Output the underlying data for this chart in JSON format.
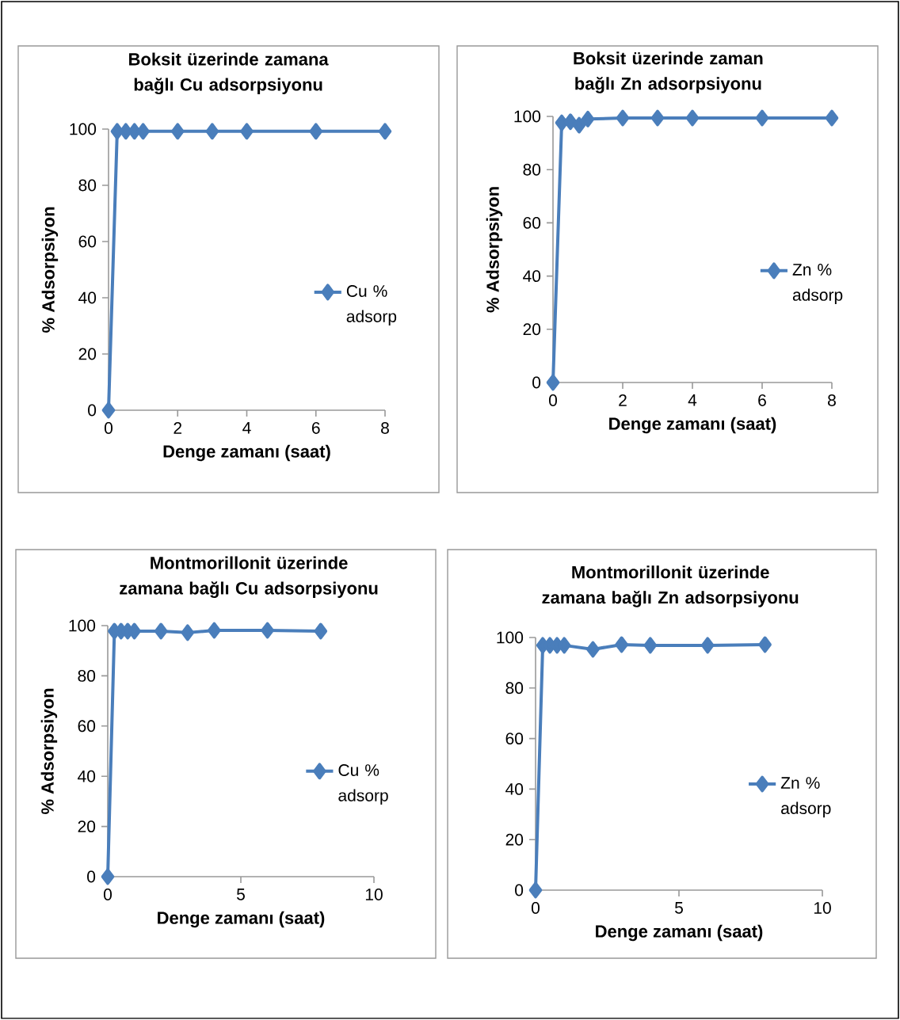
{
  "chart_data": [
    {
      "type": "line",
      "title": "Boksit üzerinde zamana bağlı Cu adsorpsiyonu",
      "xlabel": "Denge zamanı (saat)",
      "ylabel": "% Adsorpsiyon",
      "x": [
        0,
        0.25,
        0.5,
        0.75,
        1,
        2,
        3,
        4,
        6,
        8
      ],
      "xlim": [
        0,
        8
      ],
      "xticks": [
        0,
        2,
        4,
        6,
        8
      ],
      "ylim": [
        0,
        100
      ],
      "yticks": [
        0,
        20,
        40,
        60,
        80,
        100
      ],
      "marker": "diamond",
      "legend": "right",
      "series": [
        {
          "name": "Cu % adsorp",
          "color": "#4a7ebb",
          "values": [
            0,
            99.2,
            99.2,
            99.2,
            99.2,
            99.2,
            99.2,
            99.2,
            99.2,
            99.2
          ]
        }
      ]
    },
    {
      "type": "line",
      "title": "Boksit üzerinde zaman bağlı Zn adsorpsiyonu",
      "xlabel": "Denge zamanı (saat)",
      "ylabel": "% Adsorpsiyon",
      "x": [
        0,
        0.25,
        0.5,
        0.75,
        1,
        2,
        3,
        4,
        6,
        8
      ],
      "xlim": [
        0,
        8
      ],
      "xticks": [
        0,
        2,
        4,
        6,
        8
      ],
      "ylim": [
        0,
        100
      ],
      "yticks": [
        0,
        20,
        40,
        60,
        80,
        100
      ],
      "marker": "diamond",
      "legend": "right",
      "series": [
        {
          "name": "Zn % adsorp",
          "color": "#4a7ebb",
          "values": [
            0,
            97.6,
            98,
            96.7,
            99,
            99.4,
            99.4,
            99.4,
            99.4,
            99.4
          ]
        }
      ]
    },
    {
      "type": "line",
      "title": "Montmorillonit üzerinde zamana bağlı Cu adsorpsiyonu",
      "xlabel": "Denge zamanı (saat)",
      "ylabel": "% Adsorpsiyon",
      "x": [
        0,
        0.25,
        0.5,
        0.75,
        1,
        2,
        3,
        4,
        6,
        8
      ],
      "xlim": [
        0,
        10
      ],
      "xticks": [
        0,
        5,
        10
      ],
      "ylim": [
        0,
        100
      ],
      "yticks": [
        0,
        20,
        40,
        60,
        80,
        100
      ],
      "marker": "diamond",
      "legend": "right",
      "series": [
        {
          "name": "Cu % adsorp",
          "color": "#4a7ebb",
          "values": [
            0,
            97.8,
            97.8,
            97.8,
            97.8,
            97.8,
            97.2,
            98.1,
            98.1,
            97.8
          ]
        }
      ]
    },
    {
      "type": "line",
      "title": "Montmorillonit üzerinde zamana bağlı Zn adsorpsiyonu",
      "xlabel": "Denge zamanı (saat)",
      "x": [
        0,
        0.25,
        0.5,
        0.75,
        1,
        2,
        3,
        4,
        6,
        8
      ],
      "xlim": [
        0,
        10
      ],
      "xticks": [
        0,
        5,
        10
      ],
      "ylim": [
        0,
        100
      ],
      "yticks": [
        0,
        20,
        40,
        60,
        80,
        100
      ],
      "marker": "diamond",
      "legend": "right",
      "series": [
        {
          "name": "Zn % adsorp",
          "color": "#4a7ebb",
          "values": [
            0,
            96.9,
            96.9,
            96.9,
            96.9,
            95.3,
            97.2,
            96.9,
            96.9,
            97.2
          ]
        }
      ]
    }
  ]
}
